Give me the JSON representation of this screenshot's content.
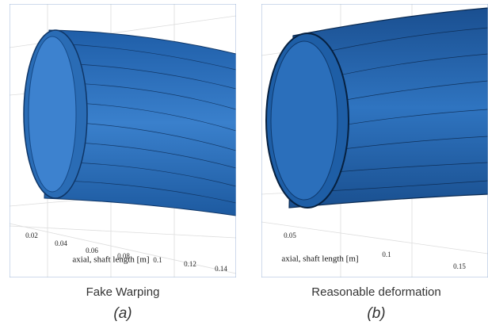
{
  "panels": [
    {
      "ticks": [
        "0.02",
        "0.04",
        "0.06",
        "0.08",
        "0.1",
        "0.12",
        "0.14"
      ],
      "axis_label": "axial, shaft length [m]",
      "caption": "Fake Warping",
      "sublabel": "(a)"
    },
    {
      "ticks": [
        "0.05",
        "0.1",
        "0.15"
      ],
      "axis_label": "axial, shaft length [m]",
      "caption": "Reasonable deformation",
      "sublabel": "(b)"
    }
  ]
}
